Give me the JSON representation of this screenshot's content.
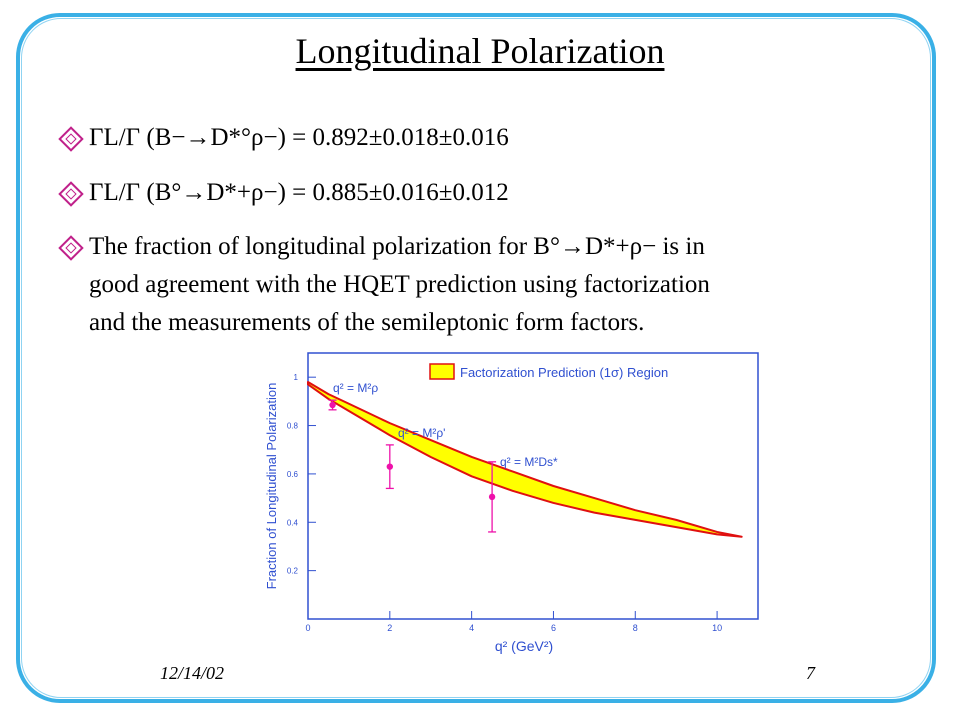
{
  "slide": {
    "title": "Longitudinal Polarization",
    "bullets": [
      "ΓL/Γ (B−→D*°ρ−) = 0.892±0.018±0.016",
      "ΓL/Γ (B°→D*+ρ−) = 0.885±0.016±0.012",
      "The fraction of longitudinal polarization for B°→D*+ρ− is in\ngood agreement with the HQET prediction using factorization\nand the measurements of the semileptonic form factors."
    ],
    "footer_date": "12/14/02",
    "page_number": "7"
  },
  "colors": {
    "frame": "#3ab0e6",
    "bullet": "#c0208a",
    "band_fill": "#ffff00",
    "band_edge": "#e01010",
    "axis": "#3050d0",
    "points": "#ee11aa"
  },
  "chart_data": {
    "type": "area",
    "ylabel": "Fraction of Longitudinal Polarization",
    "xlabel": "q² (GeV²)",
    "xlim": [
      0,
      11
    ],
    "ylim": [
      0,
      1.1
    ],
    "x_ticks": [
      "0",
      "2",
      "4",
      "6",
      "8",
      "10"
    ],
    "y_ticks": [
      "0.2",
      "0.4",
      "0.6",
      "0.8",
      "1"
    ],
    "legend": {
      "label": "Factorization Prediction (1σ) Region",
      "position": "top-right"
    },
    "band": {
      "x": [
        0,
        0.5,
        1,
        2,
        3,
        4,
        5,
        6,
        7,
        8,
        9,
        10,
        10.6
      ],
      "upper": [
        0.98,
        0.93,
        0.89,
        0.81,
        0.74,
        0.67,
        0.61,
        0.55,
        0.5,
        0.45,
        0.41,
        0.36,
        0.34
      ],
      "lower": [
        0.97,
        0.91,
        0.86,
        0.76,
        0.67,
        0.59,
        0.53,
        0.48,
        0.44,
        0.41,
        0.38,
        0.35,
        0.34
      ]
    },
    "points": [
      {
        "x": 0.6,
        "y": 0.885,
        "err": 0.02
      },
      {
        "x": 2.0,
        "y": 0.63,
        "err": 0.09
      },
      {
        "x": 4.5,
        "y": 0.505,
        "err": 0.145
      }
    ],
    "annotations": [
      "q² = M²ρ",
      "q² = M²ρ'",
      "q² = M²Ds*"
    ]
  }
}
